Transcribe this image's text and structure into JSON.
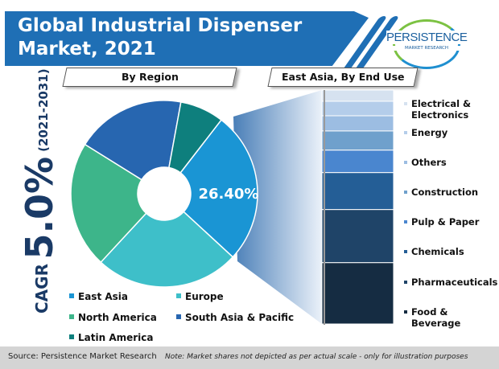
{
  "title": {
    "line1": "Global Industrial Dispenser",
    "line2": "Market, 2021"
  },
  "logo": {
    "name": "PERSISTENCE",
    "sub": "MARKET RESEARCH"
  },
  "tabs": {
    "left": "By Region",
    "right": "East Asia, By End Use"
  },
  "cagr": {
    "label": "CAGR",
    "value": "5.0%",
    "period": "(2021-2031)"
  },
  "footer": {
    "source": "Source: Persistence Market Research",
    "note": "Note: Market shares not depicted as per actual scale - only for illustration purposes"
  },
  "chart_data": [
    {
      "type": "pie",
      "title": "By Region",
      "donut": true,
      "categories": [
        "East Asia",
        "Europe",
        "North America",
        "South Asia & Pacific",
        "Latin America"
      ],
      "values": [
        26.4,
        25.0,
        22.0,
        19.0,
        7.6
      ],
      "colors": [
        "#1a95d4",
        "#3ebfc9",
        "#3db58a",
        "#2766b0",
        "#0e7f7d"
      ],
      "data_labels": [
        "26.40%"
      ],
      "legend": "bottom"
    },
    {
      "type": "bar",
      "stacked": true,
      "title": "East Asia, By End Use",
      "categories": [
        "Electrical & Electronics",
        "Energy",
        "Others",
        "Construction",
        "Pulp & Paper",
        "Chemicals",
        "Pharmaceuticals",
        "Food & Beverage"
      ],
      "values": [
        4.8,
        6.2,
        6.5,
        8.2,
        9.6,
        15.8,
        22.7,
        26.2
      ],
      "colors": [
        "#d6e2f0",
        "#b4cdea",
        "#9cbde2",
        "#6fa0cc",
        "#4a86cf",
        "#245e96",
        "#1f4468",
        "#152c42"
      ],
      "legend": "right"
    }
  ]
}
